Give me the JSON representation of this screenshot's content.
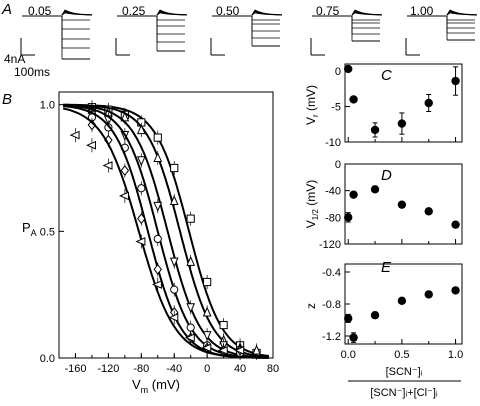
{
  "panel_letters": {
    "A": "A",
    "B": "B",
    "C": "C",
    "D": "D",
    "E": "E"
  },
  "panel_a": {
    "concentrations": [
      "0.05",
      "0.25",
      "0.50",
      "0.75",
      "1.00"
    ],
    "scale_current": "4nA",
    "scale_time": "100ms"
  },
  "chart_data": [
    {
      "panel": "B",
      "type": "scatter",
      "xlabel_main": "V",
      "xlabel_sub": "m",
      "xlabel_unit": " (mV)",
      "ylabel_main": "P",
      "ylabel_sub": "A",
      "xlim": [
        -180,
        80
      ],
      "ylim": [
        0,
        1.05
      ],
      "x_ticks": [
        "-160",
        "-120",
        "-80",
        "-40",
        "0",
        "40",
        "80"
      ],
      "y_ticks": [
        "0.0",
        "0.5",
        "1.0"
      ],
      "series": [
        {
          "marker": "square",
          "v_half": -22,
          "k": 20,
          "x": [
            -140,
            -120,
            -100,
            -80,
            -60,
            -40,
            -20,
            0,
            20,
            40,
            60
          ],
          "y": [
            0.99,
            0.98,
            0.96,
            0.93,
            0.87,
            0.75,
            0.55,
            0.3,
            0.13,
            0.05,
            0.02
          ]
        },
        {
          "marker": "triangle-up",
          "v_half": -33,
          "k": 20,
          "x": [
            -140,
            -120,
            -100,
            -80,
            -60,
            -40,
            -20,
            0,
            20,
            40,
            60
          ],
          "y": [
            0.98,
            0.97,
            0.95,
            0.9,
            0.79,
            0.62,
            0.38,
            0.18,
            0.07,
            0.04,
            0.03
          ]
        },
        {
          "marker": "triangle-down",
          "v_half": -48,
          "k": 20,
          "x": [
            -140,
            -120,
            -100,
            -80,
            -60,
            -40,
            -20,
            0,
            20,
            40
          ],
          "y": [
            0.96,
            0.94,
            0.88,
            0.78,
            0.6,
            0.38,
            0.2,
            0.09,
            0.05,
            0.03
          ]
        },
        {
          "marker": "circle",
          "v_half": -60,
          "k": 20,
          "x": [
            -140,
            -120,
            -100,
            -80,
            -60,
            -40,
            -20,
            0,
            20,
            40
          ],
          "y": [
            0.95,
            0.91,
            0.83,
            0.67,
            0.47,
            0.27,
            0.12,
            0.05,
            0.03,
            0.02
          ]
        },
        {
          "marker": "diamond",
          "v_half": -72,
          "k": 20,
          "x": [
            -140,
            -120,
            -100,
            -80,
            -60,
            -40,
            -20,
            0,
            20,
            40
          ],
          "y": [
            0.92,
            0.86,
            0.74,
            0.55,
            0.35,
            0.18,
            0.08,
            0.04,
            0.03,
            0.03
          ]
        },
        {
          "marker": "triangle-left",
          "v_half": -83,
          "k": 22,
          "x": [
            -160,
            -140,
            -120,
            -100,
            -80,
            -60,
            -40,
            -20,
            0,
            20,
            40
          ],
          "y": [
            0.88,
            0.84,
            0.76,
            0.64,
            0.46,
            0.29,
            0.16,
            0.08,
            0.04,
            0.03,
            0.03
          ]
        }
      ]
    },
    {
      "panel": "C",
      "type": "scatter",
      "ylabel_main": "V",
      "ylabel_sub": "r",
      "ylabel_unit": " (mV)",
      "ylim": [
        -10,
        1
      ],
      "y_ticks": [
        "0",
        "-5",
        "-10"
      ],
      "x": [
        0,
        0.05,
        0.25,
        0.5,
        0.75,
        1.0
      ],
      "y": [
        0.3,
        -4.0,
        -8.3,
        -7.4,
        -4.5,
        -1.4
      ],
      "err": [
        0.3,
        0.3,
        1.0,
        1.5,
        1.2,
        2.0
      ]
    },
    {
      "panel": "D",
      "type": "scatter",
      "ylabel_main": "V",
      "ylabel_sub": "1/2",
      "ylabel_unit": " (mV)",
      "ylim": [
        -120,
        0
      ],
      "y_ticks": [
        "0",
        "-40",
        "-80",
        "-120"
      ],
      "x": [
        0,
        0.05,
        0.25,
        0.5,
        0.75,
        1.0
      ],
      "y": [
        -80,
        -46,
        -38,
        -61,
        -71,
        -91
      ],
      "err": [
        7,
        3,
        3,
        3,
        3,
        3
      ]
    },
    {
      "panel": "E",
      "type": "scatter",
      "ylabel_main": "z",
      "ylim": [
        -1.3,
        -0.3
      ],
      "y_ticks": [
        "-0.4",
        "-0.8",
        "-1.2"
      ],
      "x": [
        0,
        0.05,
        0.25,
        0.5,
        0.75,
        1.0
      ],
      "y": [
        -0.98,
        -1.22,
        -0.94,
        -0.76,
        -0.68,
        -0.63
      ],
      "err": [
        0.05,
        0.06,
        0.04,
        0.03,
        0.03,
        0.03
      ],
      "xlim": [
        0,
        1
      ],
      "x_ticks": [
        "0.0",
        "0.5",
        "1.0"
      ],
      "xlabel_numerator": "[SCN⁻]ᵢ",
      "xlabel_denominator": "[SCN⁻]ᵢ+[Cl⁻]ᵢ"
    }
  ]
}
